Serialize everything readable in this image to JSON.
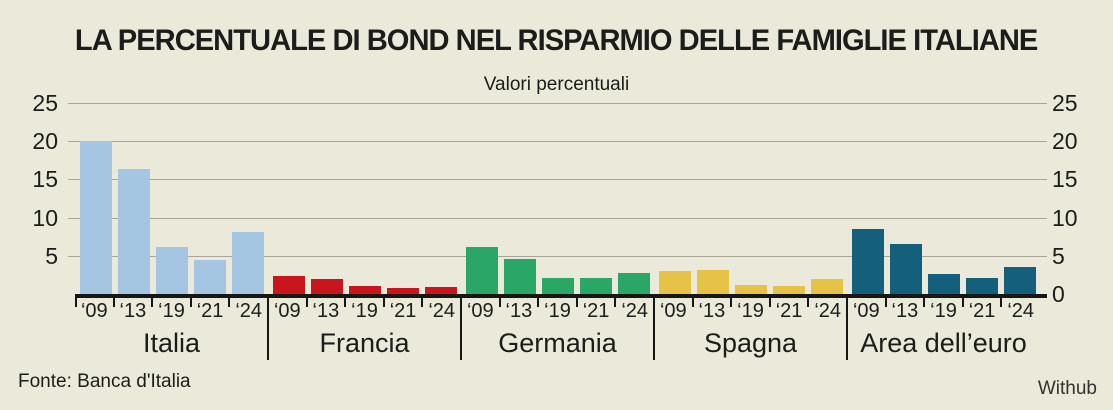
{
  "header": {
    "title": "LA PERCENTUALE DI BOND NEL RISPARMIO DELLE FAMIGLIE ITALIANE",
    "subtitle": "Valori percentuali"
  },
  "footer": {
    "source": "Fonte: Banca d'Italia",
    "credit": "Withub"
  },
  "colors": {
    "background": "#ebe9da",
    "text": "#1c1c1a",
    "gridline": "#a8a699",
    "axis": "#161614"
  },
  "chart_data": {
    "type": "bar",
    "title": "LA PERCENTUALE DI BOND NEL RISPARMIO DELLE FAMIGLIE ITALIANE",
    "subtitle": "Valori percentuali",
    "ylim": [
      0,
      25
    ],
    "grid": true,
    "legend": "none",
    "y_axis_left_labels": [
      "25",
      "20",
      "15",
      "10",
      "5"
    ],
    "y_axis_right_labels": [
      "25",
      "20",
      "15",
      "10",
      "5",
      "0"
    ],
    "years": [
      "‘09",
      "‘13",
      "‘19",
      "‘21",
      "‘24"
    ],
    "groups": [
      {
        "label": "Italia",
        "color": "#a4c6e2",
        "values": [
          20.0,
          16.3,
          6.1,
          4.4,
          8.1
        ]
      },
      {
        "label": "Francia",
        "color": "#c9151e",
        "values": [
          2.3,
          2.0,
          1.0,
          0.8,
          0.9
        ]
      },
      {
        "label": "Germania",
        "color": "#2aa767",
        "values": [
          6.2,
          4.6,
          2.1,
          2.1,
          2.8
        ]
      },
      {
        "label": "Spagna",
        "color": "#e6c246",
        "values": [
          3.0,
          3.1,
          1.2,
          1.1,
          2.0
        ]
      },
      {
        "label": "Area dell’euro",
        "color": "#135f7c",
        "values": [
          8.5,
          6.6,
          2.6,
          2.1,
          3.6
        ]
      }
    ]
  }
}
